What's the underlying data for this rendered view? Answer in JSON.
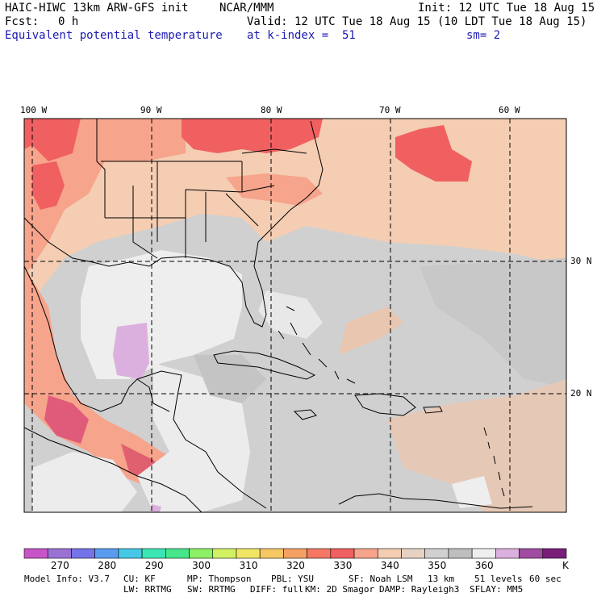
{
  "header": {
    "model": "HAIC-HIWC 13km ARW-GFS init",
    "org": "NCAR/MMM",
    "init": "Init: 12 UTC Tue 18 Aug 15",
    "fcst_label": "Fcst:",
    "fcst_value": "0 h",
    "valid": "Valid: 12 UTC Tue 18 Aug 15 (10 LDT Tue 18 Aug 15)",
    "field": "Equivalent potential temperature",
    "level": "at k-index =  51",
    "smoothing": "sm= 2"
  },
  "map": {
    "lon_labels": [
      "100 W",
      "90 W",
      "80 W",
      "70 W",
      "60 W"
    ],
    "lat_labels": [
      "30 N",
      "20 N"
    ],
    "colors": {
      "ocean_gray": "#d0d0d0",
      "light": "#eeeeee",
      "peach": "#f4cdb2",
      "salmon": "#f6a48c",
      "red": "#f06060",
      "lavender": "#dbb0de"
    }
  },
  "colorbar": {
    "colors": [
      "#c855c8",
      "#9b72d4",
      "#7474e8",
      "#5a9cf0",
      "#46c8e6",
      "#3ce6b4",
      "#46e68c",
      "#8cf064",
      "#d2f064",
      "#f0e664",
      "#f5c864",
      "#f5a064",
      "#f57864",
      "#f06060",
      "#f6a48c",
      "#f4cdb2",
      "#e6d2c3",
      "#d0d0d0",
      "#bebebe",
      "#eeeeee",
      "#dbb0de",
      "#a04ca0",
      "#7a1e7a"
    ],
    "tick_labels": [
      "270",
      "280",
      "290",
      "300",
      "310",
      "320",
      "330",
      "340",
      "350",
      "360"
    ],
    "unit": "K"
  },
  "footer": {
    "line1": [
      "Model Info: V3.7",
      "CU: KF",
      "MP: Thompson",
      "PBL: YSU",
      "SF: Noah LSM",
      "13 km",
      "51 levels",
      "60 sec"
    ],
    "line2": [
      "LW: RRTMG",
      "SW: RRTMG",
      "DIFF: full",
      "KM: 2D Smagor",
      "DAMP: Rayleigh3",
      "SFLAY: MM5"
    ]
  }
}
